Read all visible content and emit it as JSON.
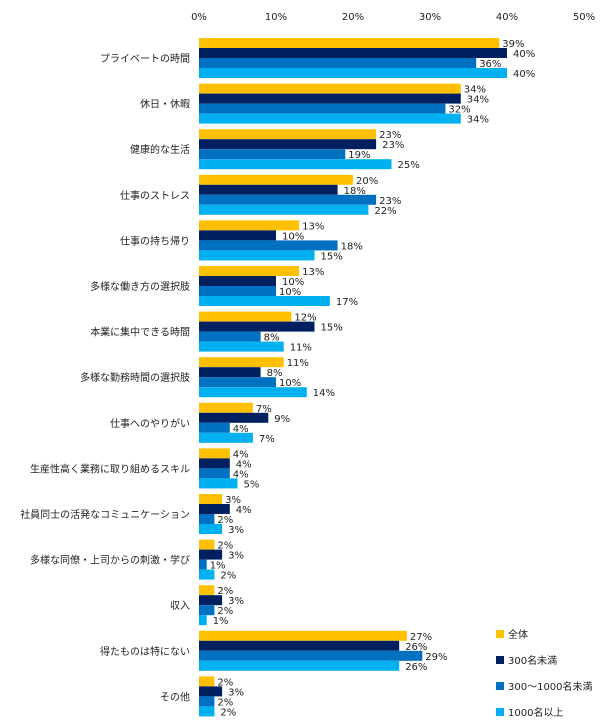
{
  "chart_data": {
    "type": "bar",
    "orientation": "horizontal",
    "title": "",
    "xlabel": "",
    "ylabel": "",
    "xlim": [
      0,
      50
    ],
    "x_ticks": [
      "0%",
      "10%",
      "20%",
      "30%",
      "40%",
      "50%"
    ],
    "grid": false,
    "legend_position": "bottom-right",
    "value_suffix": "%",
    "categories": [
      "プライベートの時間",
      "休日・休暇",
      "健康的な生活",
      "仕事のストレス",
      "仕事の持ち帰り",
      "多様な働き方の選択肢",
      "本業に集中できる時間",
      "多様な勤務時間の選択肢",
      "仕事へのやりがい",
      "生産性高く業務に取り組めるスキル",
      "社員同士の活発なコミュニケーション",
      "多様な同僚・上司からの刺激・学び",
      "収入",
      "得たものは特にない",
      "その他"
    ],
    "series": [
      {
        "name": "全体",
        "color": "#FFC000",
        "values": [
          39,
          34,
          23,
          20,
          13,
          13,
          12,
          11,
          7,
          4,
          3,
          2,
          2,
          27,
          2
        ]
      },
      {
        "name": "300名未満",
        "color": "#002060",
        "values": [
          40,
          34,
          23,
          18,
          10,
          10,
          15,
          8,
          9,
          4,
          4,
          3,
          3,
          26,
          3
        ]
      },
      {
        "name": "300〜1000名未満",
        "color": "#0070C0",
        "values": [
          36,
          32,
          19,
          23,
          18,
          10,
          8,
          10,
          4,
          4,
          2,
          1,
          2,
          29,
          2
        ]
      },
      {
        "name": "1000名以上",
        "color": "#00B0F0",
        "values": [
          40,
          34,
          25,
          22,
          15,
          17,
          11,
          14,
          7,
          5,
          3,
          2,
          1,
          26,
          2
        ]
      }
    ]
  }
}
